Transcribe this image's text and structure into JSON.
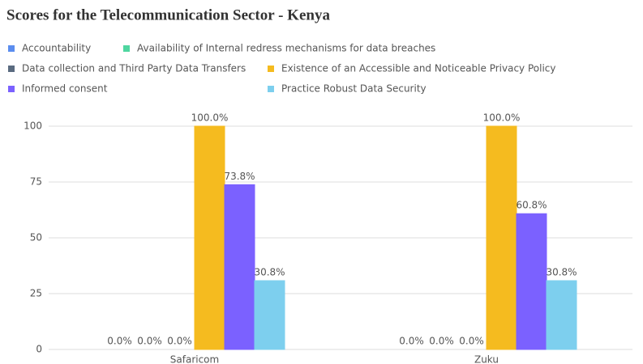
{
  "chart_data": {
    "type": "bar",
    "title": "Scores for the Telecommunication Sector - Kenya",
    "categories": [
      "Safaricom",
      "Zuku"
    ],
    "series": [
      {
        "name": "Accountability",
        "color": "#5b8def",
        "values": [
          0,
          0
        ],
        "value_labels": [
          "0.0%",
          "0.0%"
        ]
      },
      {
        "name": "Availability of Internal redress mechanisms for data breaches",
        "color": "#4fd6a0",
        "values": [
          0,
          0
        ],
        "value_labels": [
          "0.0%",
          "0.0%"
        ]
      },
      {
        "name": "Data collection and Third Party Data Transfers",
        "color": "#5a6b80",
        "values": [
          0,
          0
        ],
        "value_labels": [
          "0.0%",
          "0.0%"
        ]
      },
      {
        "name": "Existence of an Accessible and Noticeable Privacy Policy",
        "color": "#f5bb1f",
        "values": [
          100,
          100
        ],
        "value_labels": [
          "100.0%",
          "100.0%"
        ]
      },
      {
        "name": "Informed consent",
        "color": "#7b61ff",
        "values": [
          73.8,
          60.8
        ],
        "value_labels": [
          "73.8%",
          "60.8%"
        ]
      },
      {
        "name": "Practice Robust Data Security",
        "color": "#7dcfee",
        "values": [
          30.8,
          30.8
        ],
        "value_labels": [
          "30.8%",
          "30.8%"
        ]
      }
    ],
    "ylim": [
      0,
      100
    ],
    "yticks": [
      0,
      25,
      50,
      75,
      100
    ],
    "grid": true
  }
}
